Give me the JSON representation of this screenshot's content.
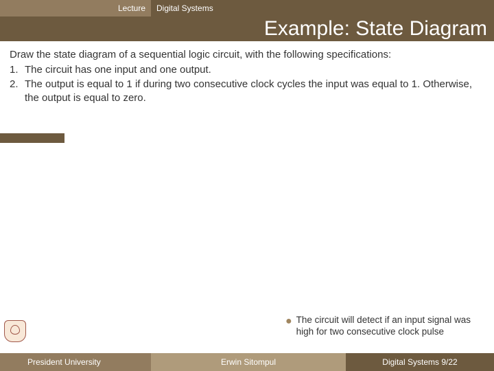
{
  "header": {
    "left": "Lecture",
    "right": "Digital Systems"
  },
  "title": "Example: State Diagram",
  "content": {
    "intro": "Draw the state diagram of a sequential logic circuit, with the following specifications:",
    "specs": [
      {
        "num": "1.",
        "text": "The circuit has one input and one output."
      },
      {
        "num": "2.",
        "text": "The output is equal to 1 if during two consecutive clock cycles the input was equal to 1. Otherwise, the output is equal to zero."
      }
    ]
  },
  "note": "The circuit will detect if an input signal was high for two consecutive clock pulse",
  "footer": {
    "left": "President University",
    "mid": "Erwin Sitompul",
    "right": "Digital Systems 9/22"
  },
  "colors": {
    "dark_brown": "#6d5a3f",
    "mid_brown": "#927c5f",
    "light_brown": "#af9b7b",
    "text": "#333333"
  }
}
